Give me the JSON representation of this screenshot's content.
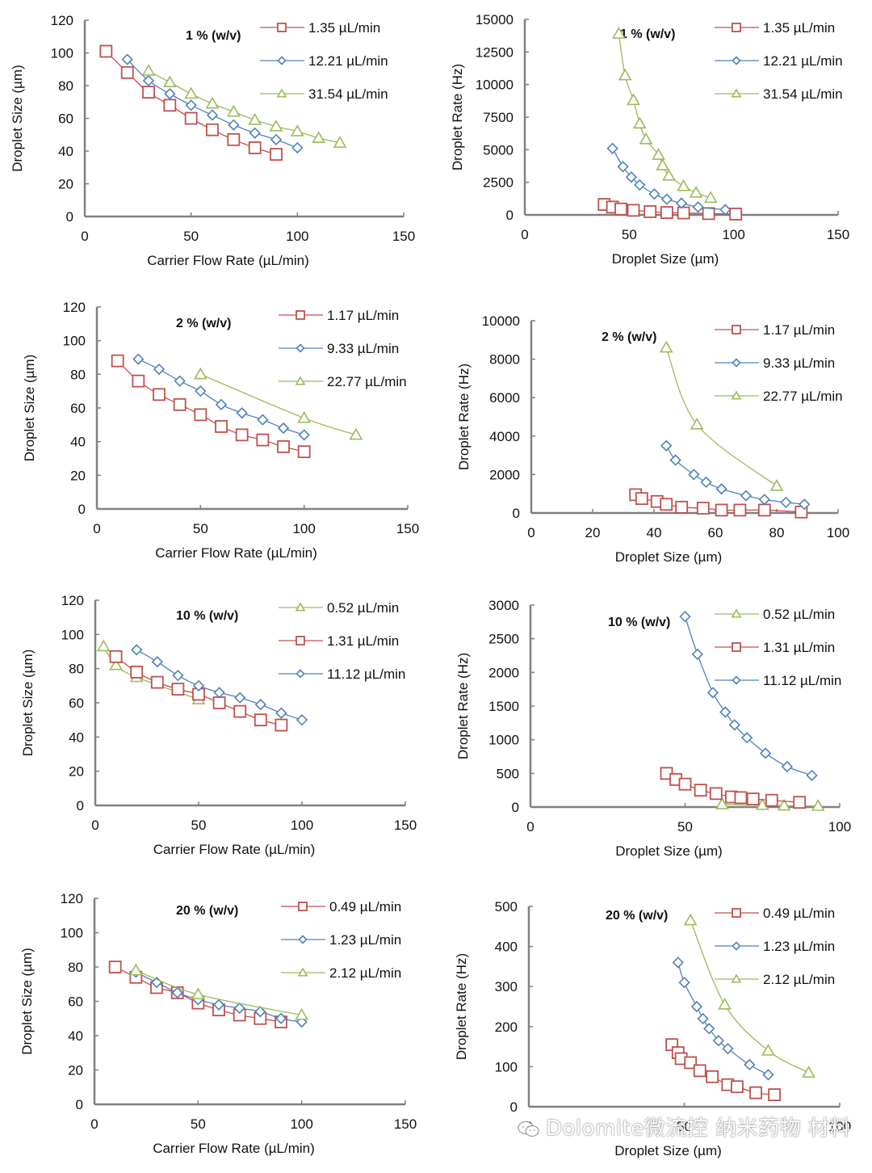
{
  "colors": {
    "red": "#c0504d",
    "blue": "#4f81bd",
    "green": "#9bbb59",
    "axis": "#808080"
  },
  "watermark": {
    "text": "Dolomite微流控 纳米药物 材料",
    "icon": "wechat-icon"
  },
  "chart_data": [
    {
      "id": "size-1pct",
      "type": "line",
      "panel_label": "1 % (w/v)",
      "xlabel": "Carrier Flow Rate (µL/min)",
      "ylabel": "Droplet Size (µm)",
      "xlim": [
        0,
        150
      ],
      "ylim": [
        0,
        120
      ],
      "xticks": [
        0,
        50,
        100,
        150
      ],
      "yticks": [
        0,
        20,
        40,
        60,
        80,
        100,
        120
      ],
      "grid": false,
      "legend_position": "top-right",
      "series": [
        {
          "name": "1.35 µL/min",
          "color": "red",
          "marker": "square",
          "x": [
            10,
            20,
            30,
            40,
            50,
            60,
            70,
            80,
            90
          ],
          "y": [
            101,
            88,
            76,
            68,
            60,
            53,
            47,
            42,
            38
          ]
        },
        {
          "name": "12.21 µL/min",
          "color": "blue",
          "marker": "diamond",
          "x": [
            20,
            30,
            40,
            50,
            60,
            70,
            80,
            90,
            100
          ],
          "y": [
            96,
            83,
            75,
            68,
            62,
            56,
            51,
            47,
            42
          ]
        },
        {
          "name": "31.54 µL/min",
          "color": "green",
          "marker": "triangle",
          "x": [
            30,
            40,
            50,
            60,
            70,
            80,
            90,
            100,
            110,
            120
          ],
          "y": [
            89,
            82,
            75,
            69,
            64,
            59,
            55,
            52,
            48,
            45
          ]
        }
      ]
    },
    {
      "id": "rate-1pct",
      "type": "line",
      "panel_label": "1 % (w/v)",
      "xlabel": "Droplet Size (µm)",
      "ylabel": "Droplet Rate (Hz)",
      "xlim": [
        0,
        150
      ],
      "ylim": [
        0,
        15000
      ],
      "xticks": [
        0,
        50,
        100,
        150
      ],
      "yticks": [
        0,
        2500,
        5000,
        7500,
        10000,
        12500,
        15000
      ],
      "grid": false,
      "legend_position": "top-right",
      "series": [
        {
          "name": "1.35 µL/min",
          "color": "red",
          "marker": "square",
          "x": [
            38,
            42,
            46,
            52,
            60,
            68,
            76,
            88,
            101
          ],
          "y": [
            800,
            600,
            450,
            350,
            250,
            180,
            150,
            100,
            60
          ]
        },
        {
          "name": "12.21 µL/min",
          "color": "blue",
          "marker": "diamond",
          "x": [
            42,
            47,
            51,
            55,
            62,
            68,
            75,
            83,
            96
          ],
          "y": [
            5100,
            3700,
            2900,
            2300,
            1600,
            1200,
            900,
            600,
            400
          ]
        },
        {
          "name": "31.54 µL/min",
          "color": "green",
          "marker": "triangle",
          "x": [
            45,
            48,
            52,
            55,
            58,
            64,
            66,
            69,
            76,
            82,
            89
          ],
          "y": [
            13900,
            10700,
            8800,
            7000,
            5800,
            4600,
            3800,
            3000,
            2200,
            1700,
            1300
          ]
        }
      ]
    },
    {
      "id": "size-2pct",
      "type": "line",
      "panel_label": "2 % (w/v)",
      "xlabel": "Carrier Flow Rate (µL/min)",
      "ylabel": "Droplet Size (µm)",
      "xlim": [
        0,
        150
      ],
      "ylim": [
        0,
        120
      ],
      "xticks": [
        0,
        50,
        100,
        150
      ],
      "yticks": [
        0,
        20,
        40,
        60,
        80,
        100,
        120
      ],
      "grid": false,
      "legend_position": "top-right",
      "series": [
        {
          "name": "1.17 µL/min",
          "color": "red",
          "marker": "square",
          "x": [
            10,
            20,
            30,
            40,
            50,
            60,
            70,
            80,
            90,
            100
          ],
          "y": [
            88,
            76,
            68,
            62,
            56,
            49,
            44,
            41,
            37,
            34
          ]
        },
        {
          "name": "9.33 µL/min",
          "color": "blue",
          "marker": "diamond",
          "x": [
            20,
            30,
            40,
            50,
            60,
            70,
            80,
            90,
            100
          ],
          "y": [
            89,
            83,
            76,
            70,
            62,
            57,
            53,
            48,
            44
          ]
        },
        {
          "name": "22.77 µL/min",
          "color": "green",
          "marker": "triangle",
          "x": [
            50,
            100,
            125
          ],
          "y": [
            80,
            54,
            44
          ]
        }
      ]
    },
    {
      "id": "rate-2pct",
      "type": "line",
      "panel_label": "2 % (w/v)",
      "xlabel": "Droplet Size (µm)",
      "ylabel": "Droplet Rate (Hz)",
      "xlim": [
        0,
        100
      ],
      "ylim": [
        0,
        10000
      ],
      "xticks": [
        0,
        20,
        40,
        60,
        80,
        100
      ],
      "yticks": [
        0,
        2000,
        4000,
        6000,
        8000,
        10000
      ],
      "grid": false,
      "legend_position": "top-right",
      "series": [
        {
          "name": "1.17 µL/min",
          "color": "red",
          "marker": "square",
          "x": [
            34,
            36,
            41,
            44,
            49,
            56,
            62,
            68,
            76,
            88
          ],
          "y": [
            950,
            750,
            600,
            450,
            300,
            250,
            150,
            150,
            150,
            50
          ]
        },
        {
          "name": "9.33 µL/min",
          "color": "blue",
          "marker": "diamond",
          "x": [
            44,
            47,
            53,
            57,
            62,
            70,
            76,
            83,
            89
          ],
          "y": [
            3500,
            2750,
            2000,
            1600,
            1250,
            900,
            700,
            550,
            450
          ]
        },
        {
          "name": "22.77 µL/min",
          "color": "green",
          "marker": "triangle",
          "x": [
            44,
            54,
            80
          ],
          "y": [
            8600,
            4600,
            1400
          ]
        }
      ]
    },
    {
      "id": "size-10pct",
      "type": "line",
      "panel_label": "10 % (w/v)",
      "xlabel": "Carrier Flow Rate (µL/min)",
      "ylabel": "Droplet Size (µm)",
      "xlim": [
        0,
        150
      ],
      "ylim": [
        0,
        120
      ],
      "xticks": [
        0,
        50,
        100,
        150
      ],
      "yticks": [
        0,
        20,
        40,
        60,
        80,
        100,
        120
      ],
      "grid": false,
      "legend_position": "top-right",
      "series": [
        {
          "name": "0.52 µL/min",
          "color": "green",
          "marker": "triangle",
          "x": [
            4,
            10,
            20,
            50
          ],
          "y": [
            93,
            82,
            75,
            62
          ]
        },
        {
          "name": "1.31 µL/min",
          "color": "red",
          "marker": "square",
          "x": [
            10,
            20,
            30,
            40,
            50,
            60,
            70,
            80,
            90
          ],
          "y": [
            87,
            78,
            72,
            68,
            65,
            60,
            55,
            50,
            47
          ]
        },
        {
          "name": "11.12 µL/min",
          "color": "blue",
          "marker": "diamond",
          "x": [
            20,
            30,
            40,
            50,
            60,
            70,
            80,
            90,
            100
          ],
          "y": [
            91,
            84,
            76,
            70,
            66,
            63,
            59,
            54,
            50
          ]
        }
      ]
    },
    {
      "id": "rate-10pct",
      "type": "line",
      "panel_label": "10 % (w/v)",
      "xlabel": "Droplet Size (µm)",
      "ylabel": "Droplet Rate (Hz)",
      "xlim": [
        0,
        100
      ],
      "ylim": [
        0,
        3000
      ],
      "xticks": [
        0,
        50,
        100
      ],
      "yticks": [
        0,
        500,
        1000,
        1500,
        2000,
        2500,
        3000
      ],
      "grid": false,
      "legend_position": "top-right",
      "series": [
        {
          "name": "0.52 µL/min",
          "color": "green",
          "marker": "triangle",
          "x": [
            62,
            75,
            82,
            93
          ],
          "y": [
            40,
            30,
            20,
            15
          ]
        },
        {
          "name": "1.31 µL/min",
          "color": "red",
          "marker": "square",
          "x": [
            44,
            47,
            50,
            55,
            60,
            65,
            68,
            72,
            78,
            87
          ],
          "y": [
            500,
            410,
            340,
            250,
            200,
            150,
            140,
            120,
            100,
            70
          ]
        },
        {
          "name": "11.12 µL/min",
          "color": "blue",
          "marker": "diamond",
          "x": [
            50,
            54,
            59,
            63,
            66,
            70,
            76,
            83,
            91
          ],
          "y": [
            2830,
            2270,
            1700,
            1410,
            1220,
            1030,
            800,
            600,
            470
          ]
        }
      ]
    },
    {
      "id": "size-20pct",
      "type": "line",
      "panel_label": "20 % (w/v)",
      "xlabel": "Carrier Flow Rate (µL/min)",
      "ylabel": "Droplet Size (µm)",
      "xlim": [
        0,
        150
      ],
      "ylim": [
        0,
        120
      ],
      "xticks": [
        0,
        50,
        100,
        150
      ],
      "yticks": [
        0,
        20,
        40,
        60,
        80,
        100,
        120
      ],
      "grid": false,
      "legend_position": "top-right",
      "series": [
        {
          "name": "0.49 µL/min",
          "color": "red",
          "marker": "square",
          "x": [
            10,
            20,
            30,
            40,
            50,
            60,
            70,
            80,
            90
          ],
          "y": [
            80,
            74,
            68,
            65,
            59,
            55,
            52,
            50,
            48
          ]
        },
        {
          "name": "1.23 µL/min",
          "color": "blue",
          "marker": "diamond",
          "x": [
            20,
            30,
            40,
            50,
            60,
            70,
            80,
            90,
            100
          ],
          "y": [
            77,
            71,
            65,
            61,
            58,
            56,
            54,
            50,
            48
          ]
        },
        {
          "name": "2.12 µL/min",
          "color": "green",
          "marker": "triangle",
          "x": [
            20,
            50,
            100
          ],
          "y": [
            78,
            64,
            52
          ]
        }
      ]
    },
    {
      "id": "rate-20pct",
      "type": "line",
      "panel_label": "20 % (w/v)",
      "xlabel": "Droplet Size (µm)",
      "ylabel": "Droplet Rate (Hz)",
      "xlim": [
        0,
        100
      ],
      "ylim": [
        0,
        500
      ],
      "xticks": [
        0,
        50,
        100
      ],
      "yticks": [
        0,
        100,
        200,
        300,
        400,
        500
      ],
      "grid": false,
      "legend_position": "top-right",
      "series": [
        {
          "name": "0.49 µL/min",
          "color": "red",
          "marker": "square",
          "x": [
            46,
            48,
            49,
            52,
            55,
            59,
            64,
            67,
            73,
            79
          ],
          "y": [
            155,
            135,
            120,
            110,
            90,
            75,
            55,
            50,
            35,
            30
          ]
        },
        {
          "name": "1.23 µL/min",
          "color": "blue",
          "marker": "diamond",
          "x": [
            48,
            50,
            54,
            56,
            58,
            61,
            64,
            71,
            77
          ],
          "y": [
            360,
            310,
            250,
            220,
            195,
            165,
            145,
            105,
            80
          ]
        },
        {
          "name": "2.12 µL/min",
          "color": "green",
          "marker": "triangle",
          "x": [
            52,
            63,
            77,
            90
          ],
          "y": [
            465,
            255,
            140,
            85
          ]
        }
      ]
    }
  ]
}
